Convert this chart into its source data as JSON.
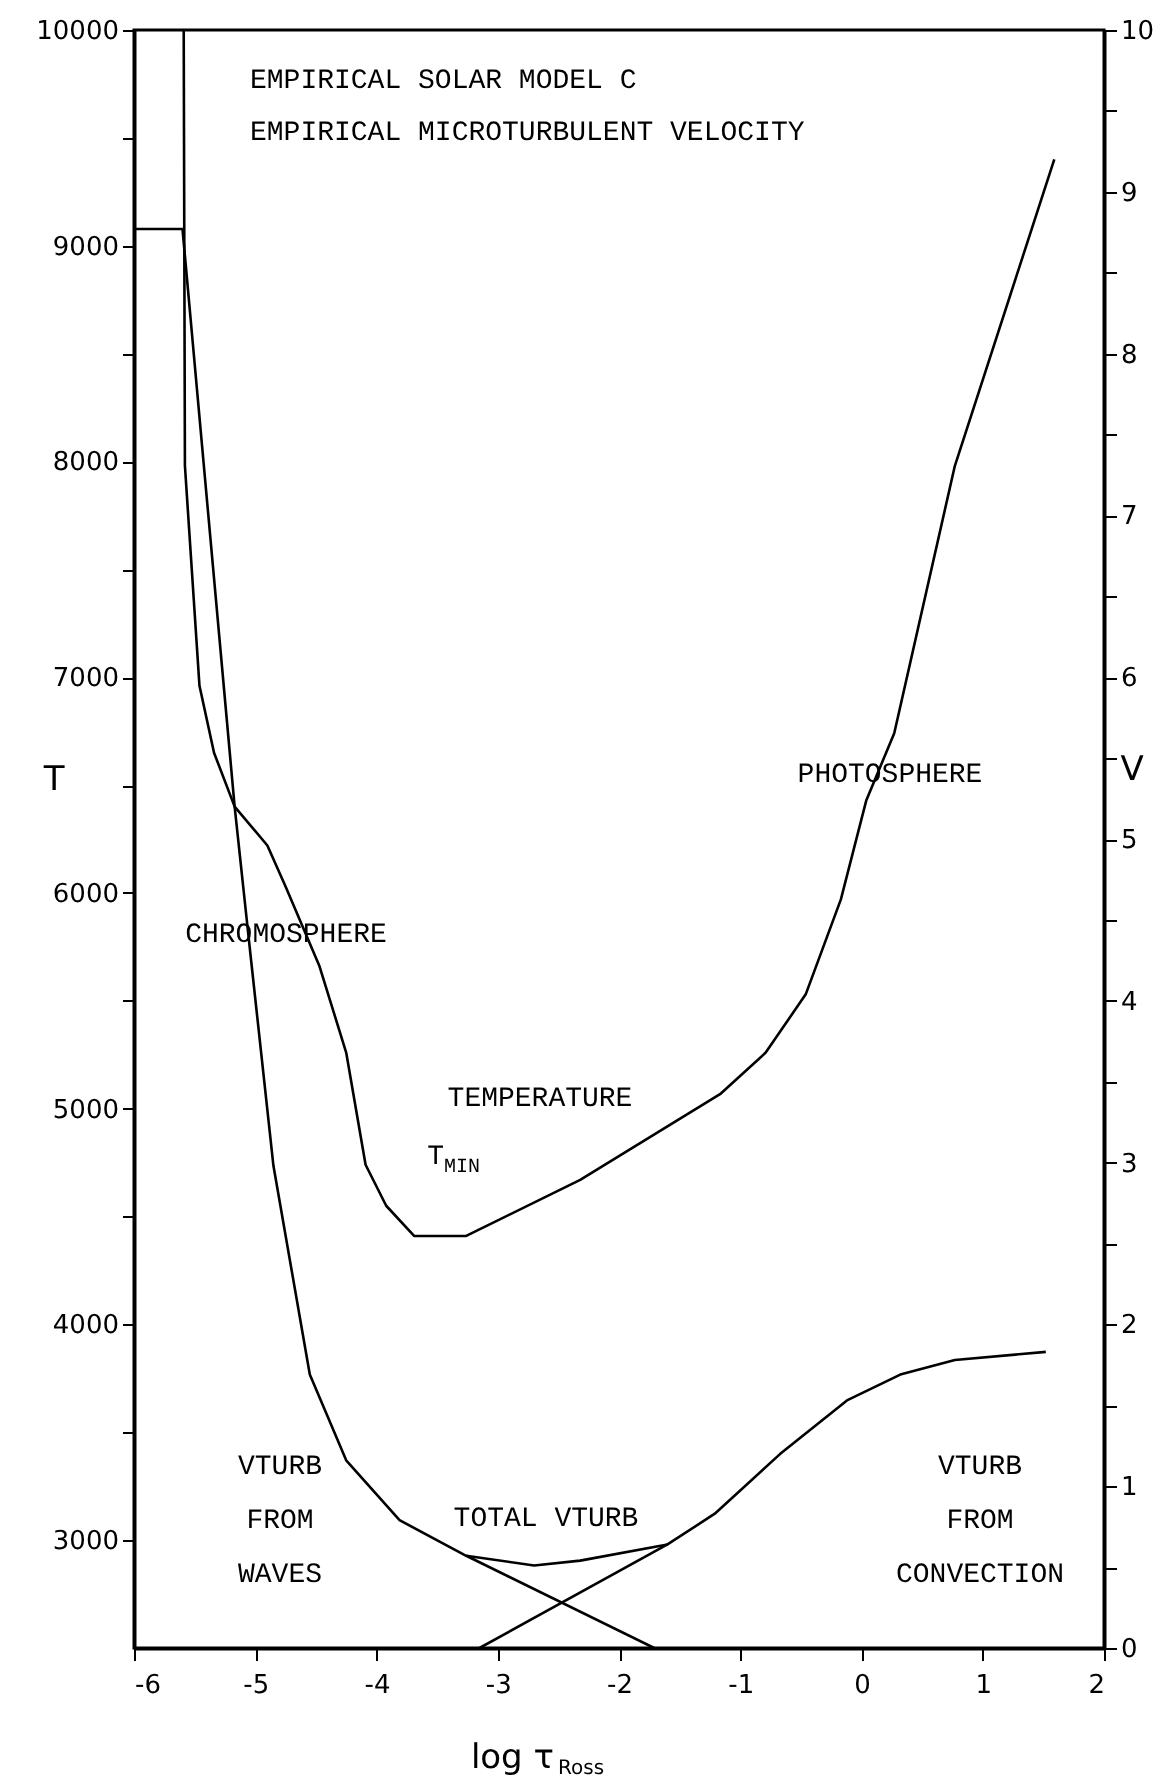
{
  "chart_data": {
    "type": "line",
    "title": "EMPIRICAL SOLAR MODEL C",
    "subtitle": "EMPIRICAL MICROTURBULENT VELOCITY",
    "xlabel": "log τ$_{Ross}$",
    "ylabel": "T",
    "y2label": "V",
    "xlim": [
      -6,
      2
    ],
    "xticks": [
      -6,
      -5,
      -4,
      -3,
      -2,
      -1,
      0,
      1,
      2
    ],
    "ylim": [
      2500,
      10000
    ],
    "yticks": [
      3000,
      {
        "value": 3500,
        "label": null
      },
      4000,
      {
        "value": 4500,
        "label": null
      },
      5000,
      {
        "value": 5500,
        "label": null
      },
      6000,
      {
        "value": 6500,
        "label": null
      },
      7000,
      {
        "value": 7500,
        "label": null
      },
      8000,
      {
        "value": 8500,
        "label": null
      },
      9000,
      {
        "value": 9500,
        "label": null
      },
      10000
    ],
    "y2lim": [
      0,
      10
    ],
    "y2ticks": [
      0,
      {
        "value": 0.5,
        "label": null
      },
      1,
      {
        "value": 1.5,
        "label": null
      },
      2,
      {
        "value": 2.5,
        "label": null
      },
      3,
      {
        "value": 3.5,
        "label": null
      },
      4,
      {
        "value": 4.5,
        "label": null
      },
      5,
      {
        "value": 5.5,
        "label": null
      },
      6,
      {
        "value": 6.5,
        "label": null
      },
      7,
      {
        "value": 7.5,
        "label": null
      },
      8,
      {
        "value": 8.5,
        "label": null
      },
      9,
      {
        "value": 9.5,
        "label": null
      },
      10
    ],
    "grid": false,
    "marker": "none",
    "line_style": "solid",
    "series": [
      {
        "color": "#000000",
        "axis": "y",
        "x": [
          -5.59,
          -5.58,
          -5.46,
          -5.34,
          -5.17,
          -4.9,
          -4.75,
          -4.47,
          -4.25,
          -4.09,
          -3.92,
          -3.69,
          -3.26,
          -2.32,
          -1.16,
          -0.79,
          -0.46,
          -0.17,
          0.04,
          0.27,
          0.77,
          1.59
        ],
        "values": [
          10000,
          7980,
          6960,
          6650,
          6400,
          6220,
          6030,
          5660,
          5260,
          4740,
          4550,
          4410,
          4410,
          4670,
          5070,
          5260,
          5530,
          5970,
          6430,
          6740,
          7980,
          9400
        ]
      },
      {
        "color": "#000000",
        "axis": "y2",
        "x": [
          -6,
          -5.6,
          -5.17,
          -5.04,
          -4.85,
          -4.55,
          -4.25,
          -3.81,
          -3.26,
          -2.7,
          -2.32,
          -1.6,
          -1.21,
          -0.67,
          -0.12,
          0.32,
          0.77,
          1.52
        ],
        "values": [
          8.77,
          8.77,
          5.2,
          4.29,
          2.98,
          1.69,
          1.16,
          0.79,
          0.57,
          0.51,
          0.54,
          0.64,
          0.83,
          1.2,
          1.53,
          1.69,
          1.78,
          1.83
        ]
      },
      {
        "color": "#000000",
        "axis": "y2",
        "x": [
          -3.26,
          -1.71
        ],
        "values": [
          0.57,
          0
        ]
      },
      {
        "color": "#000000",
        "axis": "y2",
        "x": [
          -3.15,
          -1.6
        ],
        "values": [
          0,
          0.64
        ]
      }
    ],
    "annotations": [
      "CHROMOSPHERE",
      "TEMPERATURE",
      "T$_{MIN}$",
      "PHOTOSPHERE",
      "VTURB\nFROM\nWAVES",
      "TOTAL VTURB",
      "VTURB\nFROM\nCONVECTION"
    ]
  }
}
